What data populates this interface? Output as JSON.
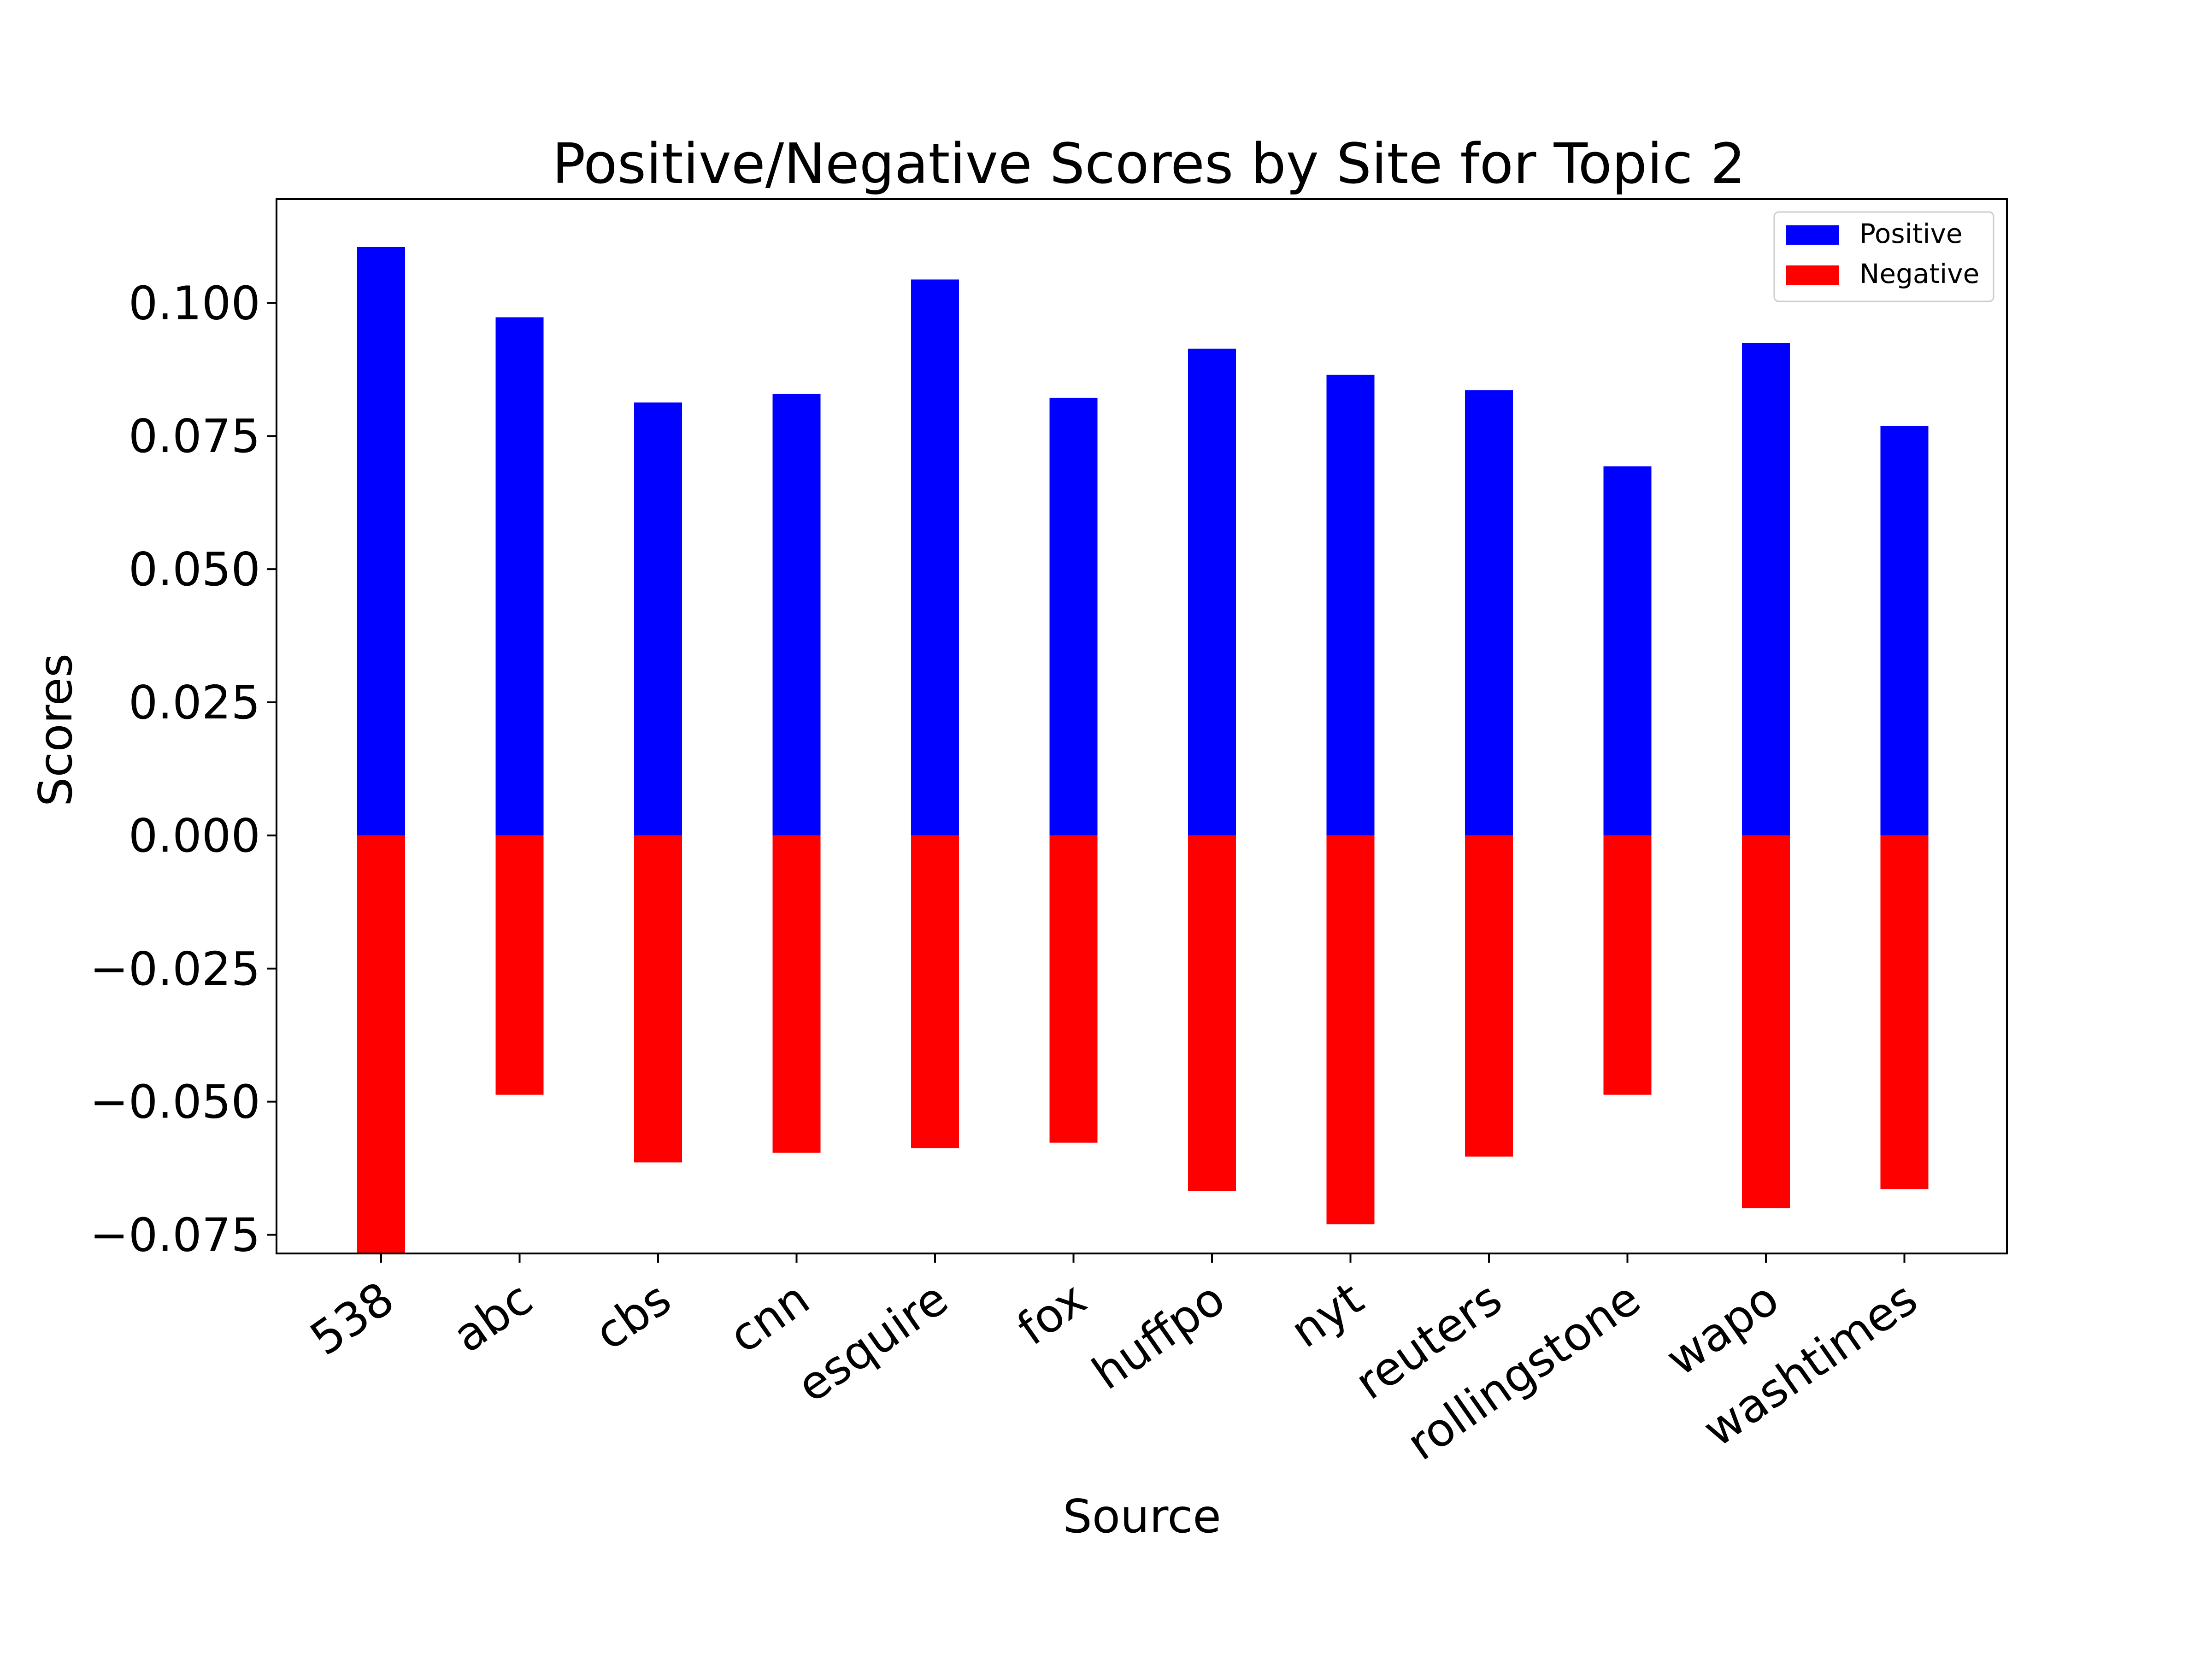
{
  "chart_data": {
    "type": "bar",
    "title": "Positive/Negative Scores by Site for Topic 2",
    "xlabel": "Source",
    "ylabel": "Scores",
    "ylim": [
      -0.0785,
      0.1195
    ],
    "yticks": [
      -0.075,
      -0.05,
      -0.025,
      0.0,
      0.025,
      0.05,
      0.075,
      0.1
    ],
    "ytick_labels": [
      "−0.075",
      "−0.050",
      "−0.025",
      "0.000",
      "0.025",
      "0.050",
      "0.075",
      "0.100"
    ],
    "grid": false,
    "legend_position": "top-right",
    "categories": [
      "538",
      "abc",
      "cbs",
      "cnn",
      "esquire",
      "fox",
      "huffpo",
      "nyt",
      "reuters",
      "rollingstone",
      "wapo",
      "washtimes"
    ],
    "series": [
      {
        "name": "Positive",
        "color": "#0000ff",
        "values": [
          0.1105,
          0.0973,
          0.0813,
          0.0829,
          0.1044,
          0.0822,
          0.0914,
          0.0865,
          0.0836,
          0.0693,
          0.0925,
          0.0769
        ]
      },
      {
        "name": "Negative",
        "color": "#ff0000",
        "values": [
          -0.0785,
          -0.0487,
          -0.0614,
          -0.0596,
          -0.0587,
          -0.0577,
          -0.0668,
          -0.073,
          -0.0603,
          -0.0487,
          -0.07,
          -0.0664
        ]
      }
    ]
  }
}
